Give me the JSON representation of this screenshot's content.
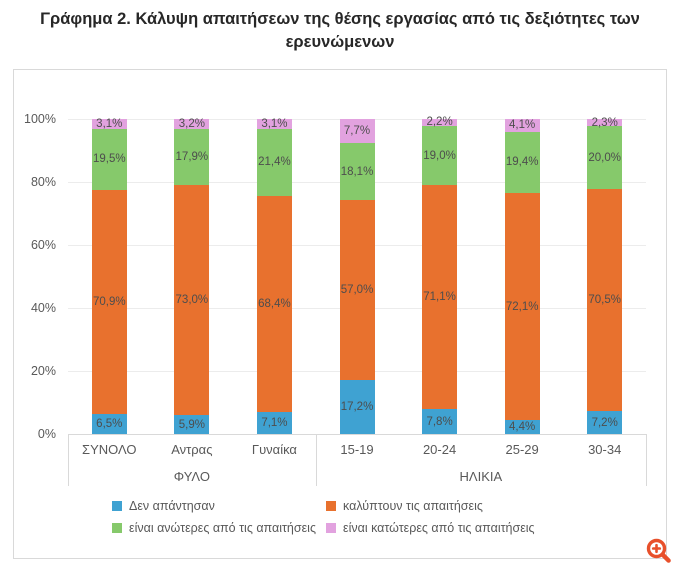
{
  "title_lines": [
    "Γράφημα 2. Κάλυψη απαιτήσεων της θέσης εργασίας από τις δεξιότητες των",
    "ερευνώμενων"
  ],
  "chart_data": {
    "type": "bar",
    "stacked": true,
    "title": "Γράφημα 2. Κάλυψη απαιτήσεων της θέσης εργασίας από τις δεξιότητες των ερευνώμενων",
    "categories": [
      "ΣΥΝΟΛΟ",
      "Αντρας",
      "Γυναίκα",
      "15-19",
      "20-24",
      "25-29",
      "30-34"
    ],
    "groups": [
      {
        "label": "ΦΥΛΟ",
        "count": 3
      },
      {
        "label": "ΗΛΙΚΙΑ",
        "count": 4
      }
    ],
    "series": [
      {
        "name": "Δεν απάντησαν",
        "color": "#3fa2d2",
        "values": [
          6.5,
          5.9,
          7.1,
          17.2,
          7.8,
          4.4,
          7.2
        ],
        "labels": [
          "6,5%",
          "5,9%",
          "7,1%",
          "17,2%",
          "7,8%",
          "4,4%",
          "7,2%"
        ]
      },
      {
        "name": "καλύπτουν τις απαιτήσεις",
        "color": "#e8712e",
        "values": [
          70.9,
          73.0,
          68.4,
          57.0,
          71.1,
          72.1,
          70.5
        ],
        "labels": [
          "70,9%",
          "73,0%",
          "68,4%",
          "57,0%",
          "71,1%",
          "72,1%",
          "70,5%"
        ]
      },
      {
        "name": "είναι ανώτερες από τις απαιτήσεις",
        "color": "#86c96b",
        "values": [
          19.5,
          17.9,
          21.4,
          18.1,
          19.0,
          19.4,
          20.0
        ],
        "labels": [
          "19,5%",
          "17,9%",
          "21,4%",
          "18,1%",
          "19,0%",
          "19,4%",
          "20,0%"
        ]
      },
      {
        "name": "είναι κατώτερες από τις απαιτήσεις",
        "color": "#e2a2df",
        "values": [
          3.1,
          3.2,
          3.1,
          7.7,
          2.2,
          4.1,
          2.3
        ],
        "labels": [
          "3,1%",
          "3,2%",
          "3,1%",
          "7,7%",
          "2,2%",
          "4,1%",
          "2,3%"
        ]
      }
    ],
    "y_ticks": [
      "0%",
      "20%",
      "40%",
      "60%",
      "80%",
      "100%"
    ],
    "ylim": [
      0,
      100
    ],
    "grid": true,
    "legend_position": "bottom"
  },
  "colors": {
    "card_border": "#d9d9d9",
    "gridline": "#ececec",
    "axis_line": "#d9d9d9",
    "axis_text": "#595959",
    "data_label_text": "#4d4d4d",
    "title_text": "#272727",
    "zoom_icon": "#e8502b"
  },
  "icons": {
    "zoom_in": "magnifier-plus"
  }
}
